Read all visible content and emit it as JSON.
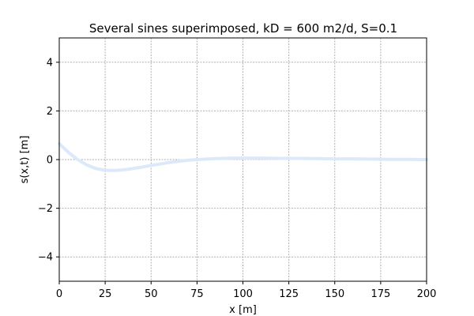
{
  "chart_data": {
    "type": "line",
    "title": "Several sines superimposed, kD = 600 m2/d, S=0.1",
    "xlabel": "x [m]",
    "ylabel": "s(x,t) [m]",
    "xlim": [
      0,
      200
    ],
    "ylim": [
      -5,
      5
    ],
    "xticks": [
      0,
      25,
      50,
      75,
      100,
      125,
      150,
      175,
      200
    ],
    "yticks": [
      -4,
      -2,
      0,
      2,
      4
    ],
    "xtick_labels": [
      "0",
      "25",
      "50",
      "75",
      "100",
      "125",
      "150",
      "175",
      "200"
    ],
    "ytick_labels": [
      "−4",
      "−2",
      "0",
      "2",
      "4"
    ],
    "grid": true,
    "series": [
      {
        "color": "#dbe9fb",
        "x": [
          0,
          5,
          10,
          15,
          20,
          25,
          30,
          35,
          40,
          45,
          50,
          55,
          60,
          65,
          70,
          75,
          80,
          85,
          90,
          95,
          100,
          110,
          120,
          130,
          140,
          150,
          160,
          170,
          180,
          190,
          200
        ],
        "y": [
          0.65,
          0.3,
          0.0,
          -0.22,
          -0.37,
          -0.44,
          -0.45,
          -0.42,
          -0.37,
          -0.31,
          -0.24,
          -0.18,
          -0.12,
          -0.07,
          -0.03,
          0.0,
          0.02,
          0.04,
          0.05,
          0.06,
          0.06,
          0.06,
          0.05,
          0.05,
          0.04,
          0.03,
          0.03,
          0.02,
          0.01,
          0.01,
          0.0
        ]
      }
    ]
  }
}
